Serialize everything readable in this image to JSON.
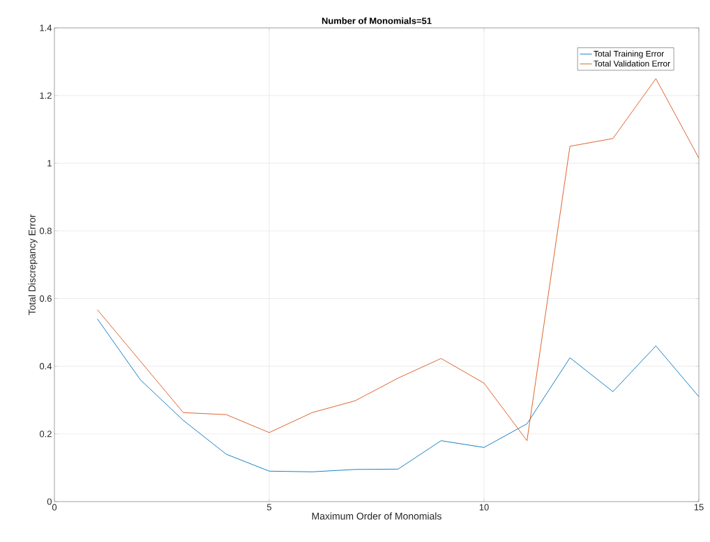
{
  "chart_data": {
    "type": "line",
    "title": "Number of Monomials=51",
    "xlabel": "Maximum Order of Monomials",
    "ylabel": "Total Discrepancy Error",
    "x": [
      1,
      2,
      3,
      4,
      5,
      6,
      7,
      8,
      9,
      10,
      11,
      12,
      13,
      14,
      15
    ],
    "series": [
      {
        "name": "Total Training Error",
        "color": "#0072bd",
        "values": [
          0.54,
          0.36,
          0.24,
          0.14,
          0.09,
          0.088,
          0.095,
          0.096,
          0.18,
          0.16,
          0.23,
          0.425,
          0.325,
          0.46,
          0.31
        ]
      },
      {
        "name": "Total Validation Error",
        "color": "#d95319",
        "values": [
          0.567,
          0.415,
          0.263,
          0.257,
          0.204,
          0.263,
          0.298,
          0.365,
          0.423,
          0.35,
          0.18,
          1.05,
          1.073,
          1.25,
          1.015
        ]
      }
    ],
    "xlim": [
      0,
      15
    ],
    "ylim": [
      0,
      1.4
    ],
    "xticks": [
      0,
      5,
      10,
      15
    ],
    "yticks": [
      0,
      0.2,
      0.4,
      0.6,
      0.8,
      1,
      1.2,
      1.4
    ],
    "grid": true,
    "legend": "top right",
    "marker": "none",
    "line_style": "solid"
  }
}
